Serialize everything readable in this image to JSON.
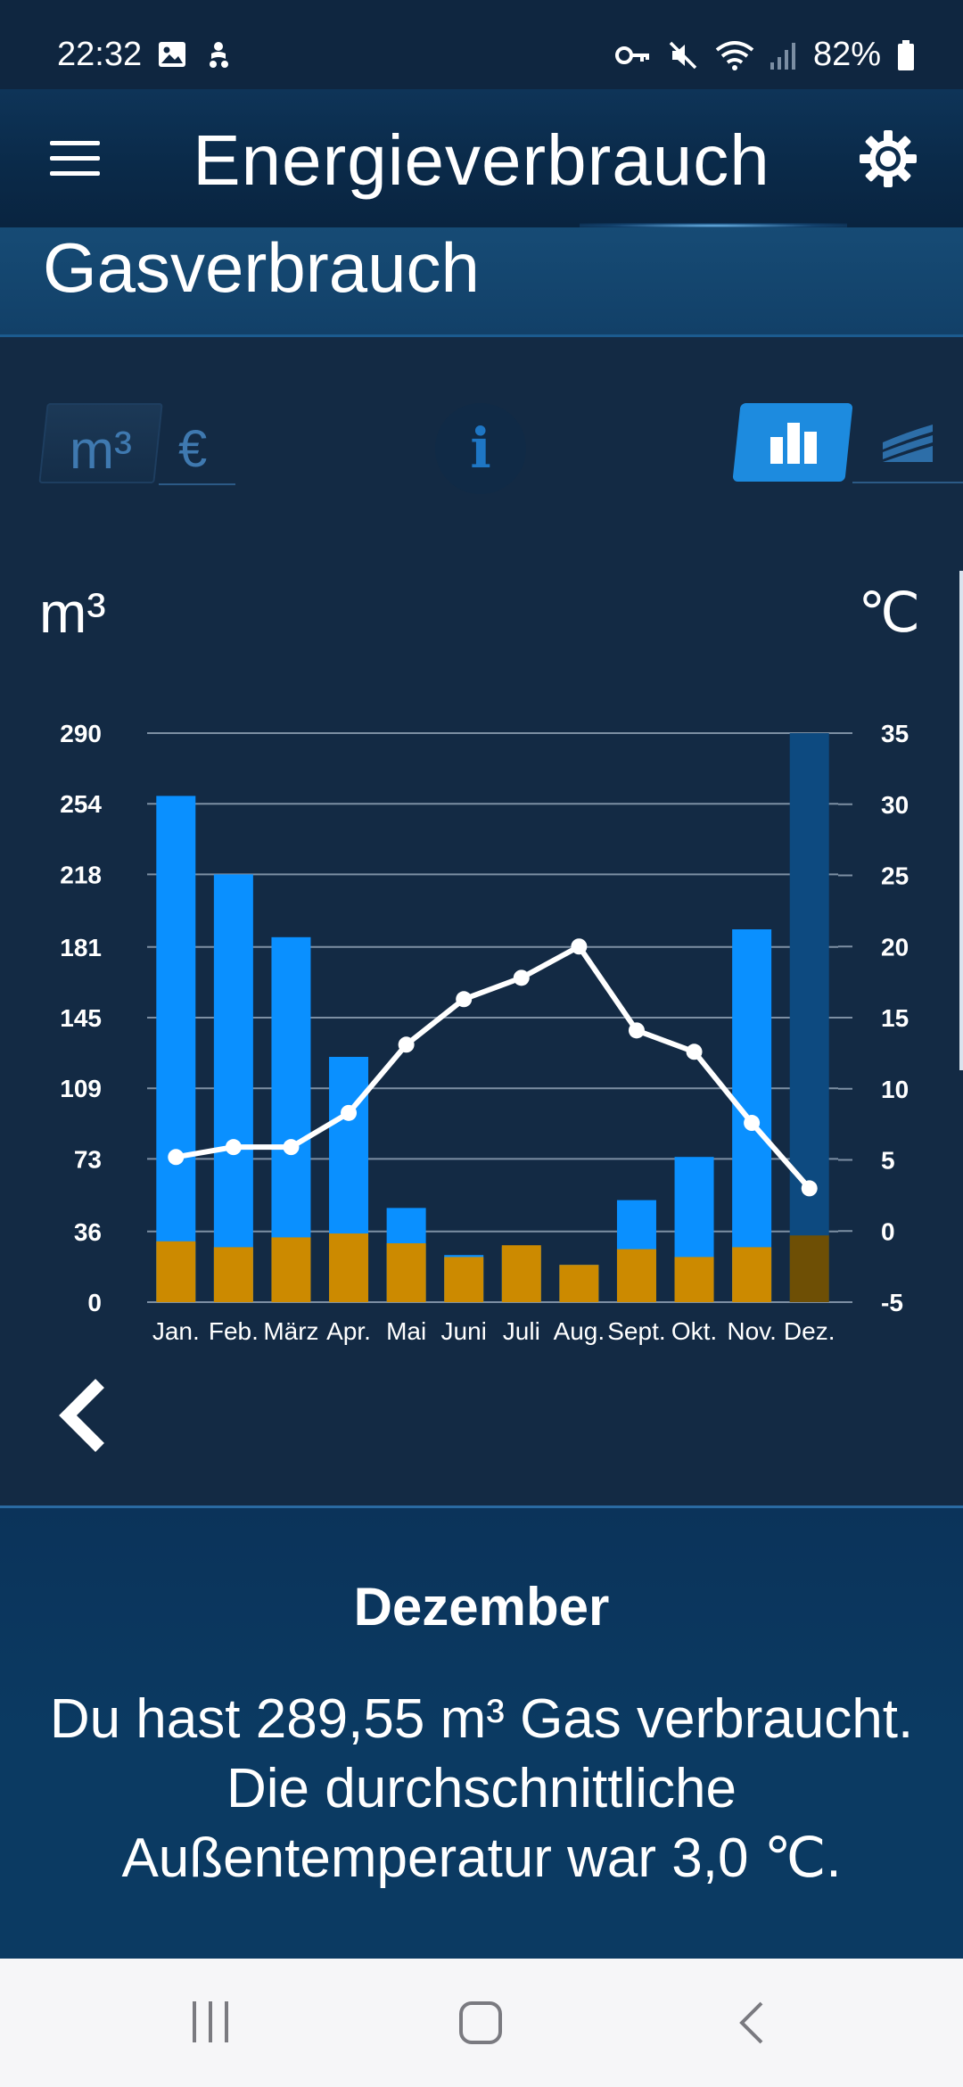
{
  "status_bar": {
    "time": "22:32",
    "battery": "82%"
  },
  "app_bar": {
    "title": "Energieverbrauch"
  },
  "section": {
    "title": "Gasverbrauch"
  },
  "unit_toggle": {
    "m3_label": "m³",
    "euro_label": "€"
  },
  "info_button": {
    "label": "i"
  },
  "chart_data": {
    "type": "bar",
    "title": "",
    "ylabel": "m³",
    "y2label": "℃",
    "categories": [
      "Jan.",
      "Feb.",
      "März",
      "Apr.",
      "Mai",
      "Juni",
      "Juli",
      "Aug.",
      "Sept.",
      "Okt.",
      "Nov.",
      "Dez."
    ],
    "series": [
      {
        "type": "bar",
        "values": [
          258,
          218,
          186,
          125,
          48,
          24,
          28,
          19,
          52,
          74,
          190,
          290
        ]
      },
      {
        "type": "bar",
        "values": [
          31,
          28,
          33,
          35,
          30,
          23,
          29,
          19,
          27,
          23,
          28,
          34
        ]
      },
      {
        "type": "line",
        "axis": "right",
        "values": [
          5.2,
          5.9,
          5.9,
          8.3,
          13.1,
          16.3,
          17.8,
          20.0,
          14.1,
          12.6,
          7.6,
          3.0
        ]
      }
    ],
    "selected_index": 11,
    "y_ticks": [
      0,
      36,
      73,
      109,
      145,
      181,
      218,
      254,
      290
    ],
    "y2_ticks": [
      -5,
      0,
      5,
      10,
      15,
      20,
      25,
      30,
      35
    ],
    "ylim": [
      0,
      290
    ],
    "y2lim": [
      -5,
      35
    ],
    "grid": true,
    "colors": {
      "bar_total": "#0a90ff",
      "bar_base": "#cc8a00",
      "bar_total_selected": "#0d4a80",
      "bar_base_selected": "#6e4f05",
      "line": "#ffffff",
      "grid": "#7d8fa3"
    }
  },
  "details": {
    "month": "Dezember",
    "line1": "Du hast 289,55 m³ Gas verbraucht.",
    "line2": "Die durchschnittliche",
    "line3": "Außentemperatur war 3,0 ℃."
  }
}
